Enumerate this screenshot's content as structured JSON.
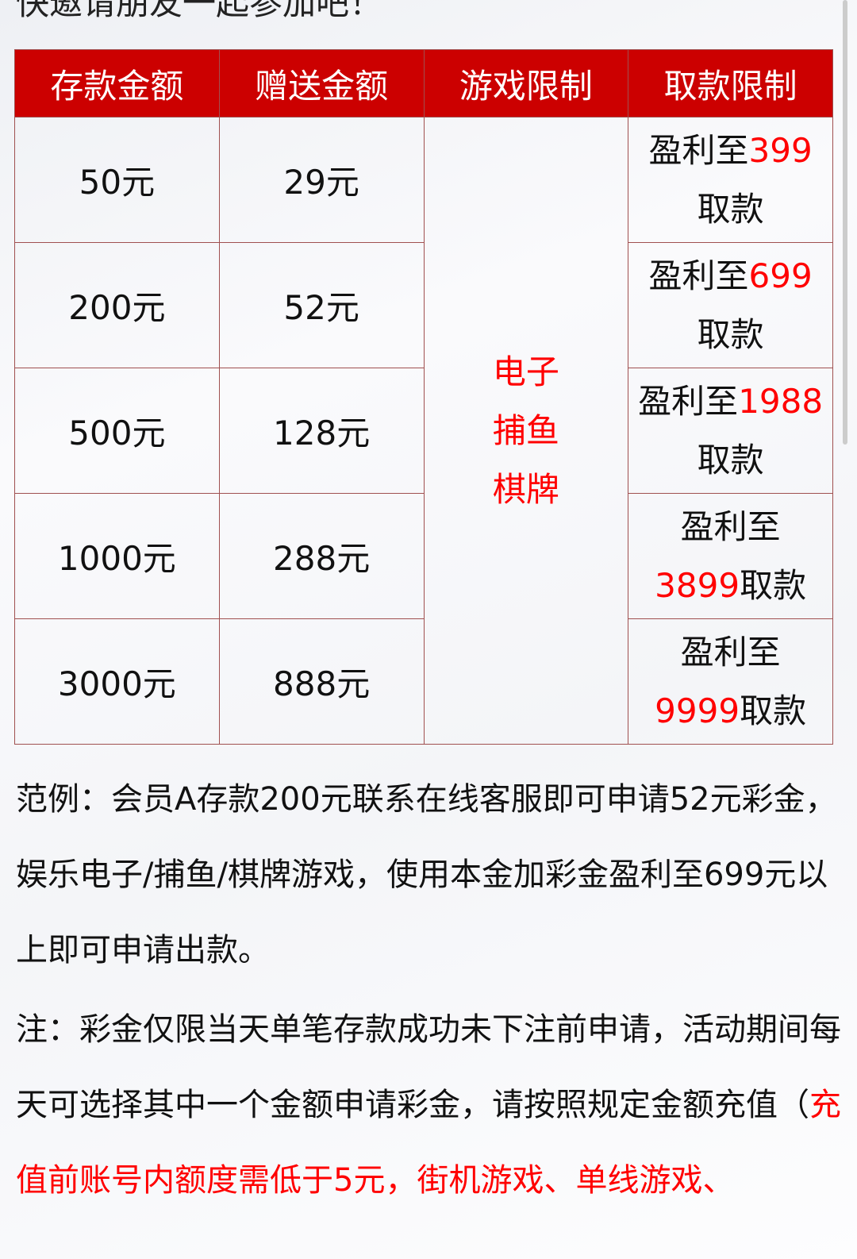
{
  "intro": "快邀请朋友一起参加吧！",
  "table": {
    "headers": [
      "存款金额",
      "赠送金额",
      "游戏限制",
      "取款限制"
    ],
    "games": [
      "电子",
      "捕鱼",
      "棋牌"
    ],
    "rows": [
      {
        "deposit": "50元",
        "bonus": "29元",
        "limit_pre": "盈利至",
        "limit_amount": "399",
        "limit_post": "取款"
      },
      {
        "deposit": "200元",
        "bonus": "52元",
        "limit_pre": "盈利至",
        "limit_amount": "699",
        "limit_post": "取款"
      },
      {
        "deposit": "500元",
        "bonus": "128元",
        "limit_pre": "盈利至",
        "limit_amount": "1988",
        "limit_post": "取款"
      },
      {
        "deposit": "1000元",
        "bonus": "288元",
        "limit_pre": "盈利至",
        "limit_amount": "3899",
        "limit_post": "取款"
      },
      {
        "deposit": "3000元",
        "bonus": "888元",
        "limit_pre": "盈利至",
        "limit_amount": "9999",
        "limit_post": "取款"
      }
    ]
  },
  "example": "范例：会员A存款200元联系在线客服即可申请52元彩金，娱乐电子/捕鱼/棋牌游戏，使用本金加彩金盈利至699元以上即可申请出款。",
  "note_black": "注：彩金仅限当天单笔存款成功未下注前申请，活动期间每天可选择其中一个金额申请彩金，请按照规定金额充值（",
  "note_red": "充值前账号内额度需低于5元，街机游戏、单线游戏、"
}
